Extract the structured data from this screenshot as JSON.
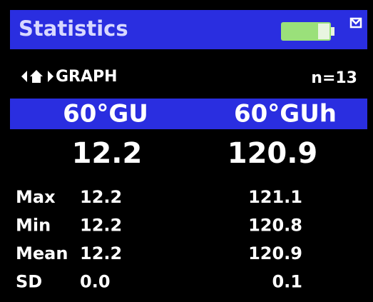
{
  "header": {
    "title": "Statistics"
  },
  "nav": {
    "label": "GRAPH",
    "count": "n=13"
  },
  "columns": [
    "60°GU",
    "60°GUh"
  ],
  "current": [
    "12.2",
    "120.9"
  ],
  "rows": [
    [
      "Max",
      "12.2",
      "121.1"
    ],
    [
      "Min",
      "12.2",
      "120.8"
    ],
    [
      "Mean",
      "12.2",
      "120.9"
    ],
    [
      "SD",
      "0.0",
      "0.1"
    ]
  ]
}
